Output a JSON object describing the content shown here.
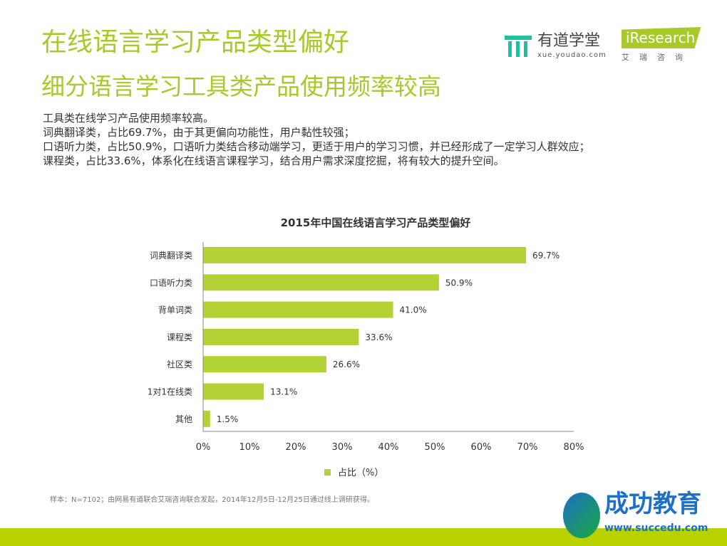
{
  "header": {
    "title": "在线语言学习产品类型偏好",
    "subtitle": "细分语言学习工具类产品使用频率较高"
  },
  "logos": {
    "youdao_name": "有道学堂",
    "youdao_url": "xue.youdao.com",
    "iresearch": "iResearch",
    "iresearch_cn": "艾瑞咨询",
    "succedu_cn": "成功教育",
    "succedu_url": "www.succedu.com"
  },
  "body": [
    "工具类在线学习产品使用频率较高。",
    "词典翻译类，占比69.7%，由于其更偏向功能性，用户黏性较强；",
    "口语听力类，占比50.9%，口语听力类结合移动端学习，更适于用户的学习习惯，并已经形成了一定学习人群效应；",
    "课程类，占比33.6%，体系化在线语言课程学习，结合用户需求深度挖掘，将有较大的提升空间。"
  ],
  "footnote": "样本：N=7102；由网易有道联合艾瑞咨询联合发起，2014年12月5日-12月25日通过线上调研获得。",
  "chart_data": {
    "type": "bar",
    "orientation": "horizontal",
    "title": "2015年中国在线语言学习产品类型偏好",
    "categories": [
      "词典翻译类",
      "口语听力类",
      "背单词类",
      "课程类",
      "社区类",
      "1对1在线类",
      "其他"
    ],
    "series": [
      {
        "name": "占比（%）",
        "values": [
          69.7,
          50.9,
          41.0,
          33.6,
          26.6,
          13.1,
          1.5
        ],
        "color": "#b2d235"
      }
    ],
    "data_labels": [
      "69.7%",
      "50.9%",
      "41.0%",
      "33.6%",
      "26.6%",
      "13.1%",
      "1.5%"
    ],
    "xlim": [
      0,
      80
    ],
    "xticks": [
      "0%",
      "10%",
      "20%",
      "30%",
      "40%",
      "50%",
      "60%",
      "70%",
      "80%"
    ],
    "legend": "bottom",
    "grid": false
  }
}
